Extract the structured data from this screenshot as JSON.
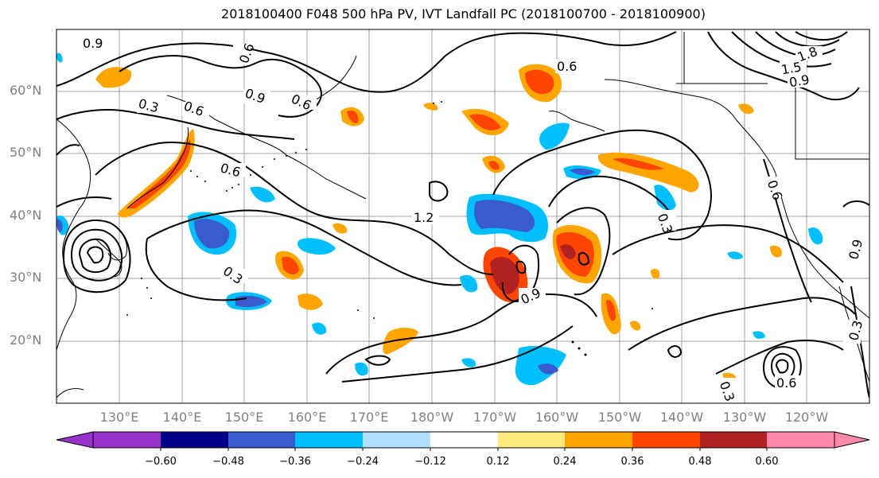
{
  "title": "2018100400 F048 500 hPa PV, IVT Landfall PC (2018100700 - 2018100900)",
  "lat_labels": [
    "60°N",
    "50°N",
    "40°N",
    "30°N",
    "20°N"
  ],
  "lon_labels": [
    "130°E",
    "140°E",
    "150°E",
    "160°E",
    "170°E",
    "180°W",
    "170°W",
    "160°W",
    "150°W",
    "140°W",
    "130°W",
    "120°W"
  ],
  "contour_labels": [
    "0.9",
    "0.6",
    "0.3",
    "0.6",
    "0.9",
    "0.6",
    "0.6",
    "1.2",
    "0.6",
    "0.3",
    "0.9",
    "0.3",
    "0.3",
    "0.6",
    "0.9",
    "0.3",
    "0.9",
    "1.5",
    "1.8",
    "0.6"
  ],
  "colorbar": {
    "ticks": [
      "−0.60",
      "−0.48",
      "−0.36",
      "−0.24",
      "−0.12",
      "0.12",
      "0.24",
      "0.36",
      "0.48",
      "0.60"
    ],
    "colors": [
      "#9932cc",
      "#00008b",
      "#3a5bd0",
      "#00bfff",
      "#b0e2ff",
      "#ffffff",
      "#ffea80",
      "#ffa500",
      "#ff4500",
      "#b22222",
      "#ff88aa"
    ]
  },
  "fill_colors": {
    "neg_1": "#b0e2ff",
    "neg_2": "#00bfff",
    "neg_3": "#3a5bd0",
    "pos_1": "#ffea80",
    "pos_2": "#ffa500",
    "pos_3": "#ff4500",
    "pos_4": "#b22222"
  }
}
